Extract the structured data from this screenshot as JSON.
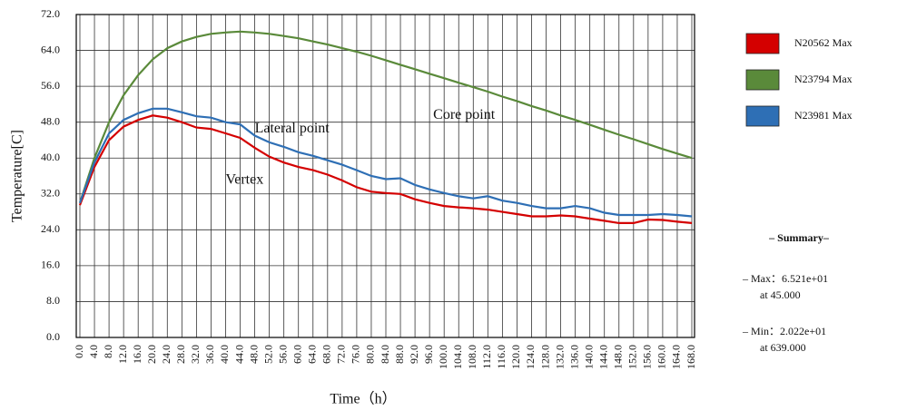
{
  "chart_data": {
    "type": "line",
    "x_label": "Time（h）",
    "y_label": "Temperature[C]",
    "annotations": [
      {
        "text": "Lateral point",
        "x": 48,
        "y": 46.5
      },
      {
        "text": "Vertex",
        "x": 40,
        "y": 35
      },
      {
        "text": "Core point",
        "x": 97,
        "y": 49.5
      }
    ],
    "x": [
      0,
      4,
      8,
      12,
      16,
      20,
      24,
      28,
      32,
      36,
      40,
      44,
      48,
      52,
      56,
      60,
      64,
      68,
      72,
      76,
      80,
      84,
      88,
      92,
      96,
      100,
      104,
      108,
      112,
      116,
      120,
      124,
      128,
      132,
      136,
      140,
      144,
      148,
      152,
      156,
      160,
      164,
      168
    ],
    "series": [
      {
        "name": "N20562 Max",
        "color": "#d40000",
        "values": [
          29.5,
          38,
          44,
          47,
          48.5,
          49.5,
          49,
          48,
          46.8,
          46.5,
          45.5,
          44.5,
          42.3,
          40.3,
          39,
          38,
          37.3,
          36.3,
          35,
          33.5,
          32.5,
          32.2,
          32,
          30.8,
          30,
          29.3,
          29,
          28.8,
          28.5,
          28,
          27.5,
          27,
          27,
          27.2,
          27,
          26.5,
          26,
          25.5,
          25.5,
          26.3,
          26.2,
          25.8,
          25.5
        ]
      },
      {
        "name": "N23794 Max",
        "color": "#5a8a3a",
        "values": [
          30,
          40,
          48,
          54,
          58.5,
          62,
          64.5,
          66,
          67,
          67.7,
          68,
          68.2,
          68,
          67.7,
          67.2,
          66.7,
          66,
          65.3,
          64.5,
          63.7,
          62.8,
          61.8,
          60.8,
          59.8,
          58.8,
          57.8,
          56.8,
          55.8,
          54.8,
          53.7,
          52.7,
          51.6,
          50.6,
          49.5,
          48.5,
          47.4,
          46.3,
          45.2,
          44.2,
          43.1,
          42,
          41,
          40
        ]
      },
      {
        "name": "N23981 Max",
        "color": "#2e6fb5",
        "values": [
          30,
          39,
          45.5,
          48.5,
          50,
          51,
          51,
          50.2,
          49.3,
          49,
          48,
          47.5,
          45,
          43.5,
          42.5,
          41.3,
          40.5,
          39.5,
          38.5,
          37.3,
          36,
          35.3,
          35.5,
          34,
          33,
          32.2,
          31.5,
          31,
          31.5,
          30.5,
          30,
          29.3,
          28.8,
          28.8,
          29.3,
          28.8,
          27.8,
          27.3,
          27.3,
          27.3,
          27.5,
          27.3,
          27
        ]
      }
    ],
    "xlim": [
      0,
      168
    ],
    "ylim": [
      0,
      72
    ],
    "xticks": [
      {
        "value": 0,
        "label": "0.0"
      },
      {
        "value": 4,
        "label": "4.0"
      },
      {
        "value": 8,
        "label": "8.0"
      },
      {
        "value": 12,
        "label": "12.0"
      },
      {
        "value": 16,
        "label": "16.0"
      },
      {
        "value": 20,
        "label": "20.0"
      },
      {
        "value": 24,
        "label": "24.0"
      },
      {
        "value": 28,
        "label": "28.0"
      },
      {
        "value": 32,
        "label": "32.0"
      },
      {
        "value": 36,
        "label": "36.0"
      },
      {
        "value": 40,
        "label": "40.0"
      },
      {
        "value": 44,
        "label": "44.0"
      },
      {
        "value": 48,
        "label": "48.0"
      },
      {
        "value": 52,
        "label": "52.0"
      },
      {
        "value": 56,
        "label": "56.0"
      },
      {
        "value": 60,
        "label": "60.0"
      },
      {
        "value": 64,
        "label": "64.0"
      },
      {
        "value": 68,
        "label": "68.0"
      },
      {
        "value": 72,
        "label": "72.0"
      },
      {
        "value": 76,
        "label": "76.0"
      },
      {
        "value": 80,
        "label": "80.0"
      },
      {
        "value": 84,
        "label": "84.0"
      },
      {
        "value": 88,
        "label": "88.0"
      },
      {
        "value": 92,
        "label": "92.0"
      },
      {
        "value": 96,
        "label": "96.0"
      },
      {
        "value": 100,
        "label": "100.0"
      },
      {
        "value": 104,
        "label": "104.0"
      },
      {
        "value": 108,
        "label": "108.0"
      },
      {
        "value": 112,
        "label": "112.0"
      },
      {
        "value": 116,
        "label": "116.0"
      },
      {
        "value": 120,
        "label": "120.0"
      },
      {
        "value": 124,
        "label": "124.0"
      },
      {
        "value": 128,
        "label": "128.0"
      },
      {
        "value": 132,
        "label": "132.0"
      },
      {
        "value": 136,
        "label": "136.0"
      },
      {
        "value": 140,
        "label": "140.0"
      },
      {
        "value": 144,
        "label": "144.0"
      },
      {
        "value": 148,
        "label": "148.0"
      },
      {
        "value": 152,
        "label": "152.0"
      },
      {
        "value": 156,
        "label": "156.0"
      },
      {
        "value": 160,
        "label": "160.0"
      },
      {
        "value": 164,
        "label": "164.0"
      },
      {
        "value": 168,
        "label": "168.0"
      }
    ],
    "yticks": [
      {
        "value": 0,
        "label": "0.0"
      },
      {
        "value": 8,
        "label": "8.0"
      },
      {
        "value": 16,
        "label": "16.0"
      },
      {
        "value": 24,
        "label": "24.0"
      },
      {
        "value": 32,
        "label": "32.0"
      },
      {
        "value": 40,
        "label": "40.0"
      },
      {
        "value": 48,
        "label": "48.0"
      },
      {
        "value": 56,
        "label": "56.0"
      },
      {
        "value": 64,
        "label": "64.0"
      },
      {
        "value": 72,
        "label": "72.0"
      }
    ],
    "grid": true,
    "legend": "right"
  },
  "summary": {
    "title": "– Summary–",
    "max": "– Max：6.521e+01",
    "max_at": "at 45.000",
    "min": "– Min：2.022e+01",
    "min_at": "at 639.000"
  }
}
